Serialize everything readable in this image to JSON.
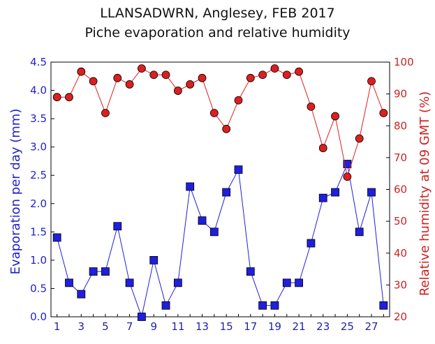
{
  "chart_data": {
    "type": "line",
    "title": "LLANSADWRN, Anglesey, FEB 2017",
    "subtitle": "Piche evaporation and relative humidity",
    "ylabel_left": "Evaporation per day (mm)",
    "ylabel_right": "Relative humidity at 09 GMT (%)",
    "ylim_left": [
      0,
      4.5
    ],
    "ylim_right": [
      20,
      100
    ],
    "xlim": [
      0.5,
      28.5
    ],
    "x_ticks": [
      1,
      3,
      5,
      7,
      9,
      11,
      13,
      15,
      17,
      19,
      21,
      23,
      25,
      27
    ],
    "y_left_ticks": [
      "0.0",
      "0.5",
      "1.0",
      "1.5",
      "2.0",
      "2.5",
      "3.0",
      "3.5",
      "4.0",
      "4.5"
    ],
    "y_right_ticks": [
      20,
      30,
      40,
      50,
      60,
      70,
      80,
      90,
      100
    ],
    "x": [
      1,
      2,
      3,
      4,
      5,
      6,
      7,
      8,
      9,
      10,
      11,
      12,
      13,
      14,
      15,
      16,
      17,
      18,
      19,
      20,
      21,
      22,
      23,
      24,
      25,
      26,
      27,
      28
    ],
    "series": [
      {
        "axis": "left",
        "color": "#1f1fdd",
        "marker": "square",
        "values": [
          1.4,
          0.6,
          0.4,
          0.8,
          0.8,
          1.6,
          0.6,
          0.0,
          1.0,
          0.2,
          0.6,
          2.3,
          1.7,
          1.5,
          2.2,
          2.6,
          0.8,
          0.2,
          0.2,
          0.6,
          0.6,
          1.3,
          2.1,
          2.2,
          2.7,
          1.5,
          2.2,
          0.2
        ]
      },
      {
        "axis": "right",
        "color": "#dd1f1f",
        "marker": "circle",
        "values": [
          89,
          89,
          97,
          94,
          84,
          95,
          93,
          98,
          96,
          96,
          91,
          93,
          95,
          84,
          79,
          88,
          95,
          96,
          98,
          96,
          97,
          86,
          73,
          83,
          64,
          76,
          94,
          84
        ]
      }
    ],
    "grid": false,
    "legend": "none"
  }
}
